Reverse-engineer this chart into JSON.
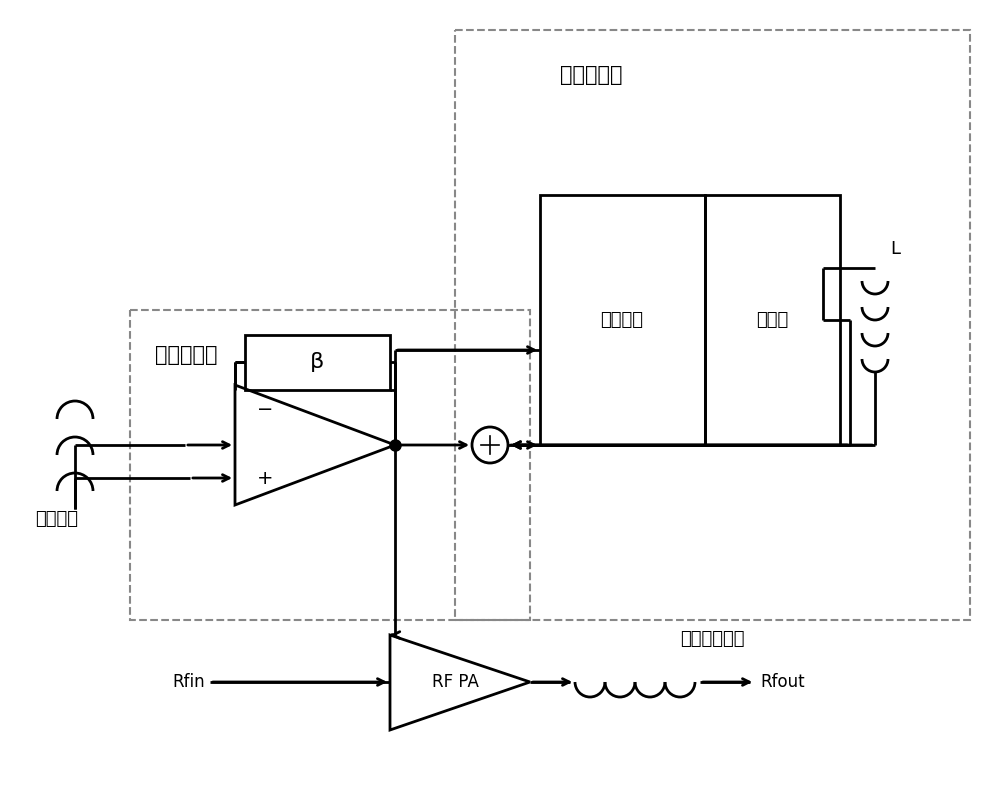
{
  "bg_color": "#ffffff",
  "lc": "#000000",
  "dc": "#888888",
  "linear_amp_label": "线性放大器",
  "switch_amp_label": "开关放大器",
  "control_circuit_label": "控制电路",
  "output_stage_label": "输出级",
  "input_label": "输入包络",
  "output_label": "输出调制电压",
  "beta_label": "β",
  "L_label": "L",
  "Rfin_label": "Rfin",
  "Rfout_label": "Rfout",
  "RFPA_label": "RF PA",
  "minus_label": "−",
  "plus_label": "+",
  "font_size": 15,
  "font_size_label": 13,
  "font_size_small": 13
}
